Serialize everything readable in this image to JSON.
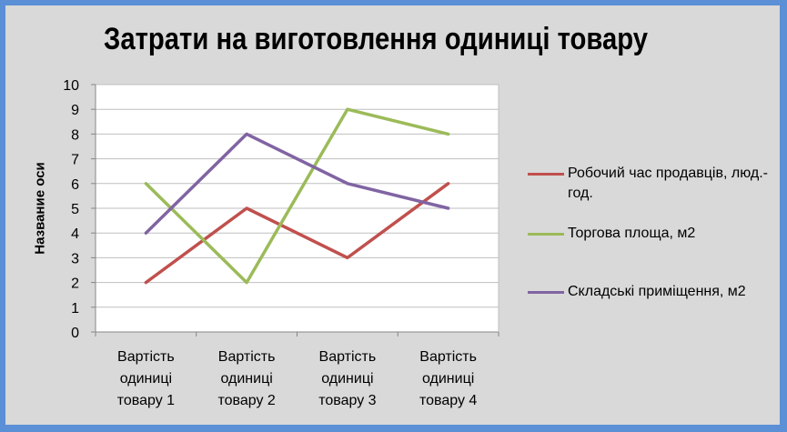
{
  "chart_data": {
    "type": "line",
    "title": "Затрати на виготовлення одиниці товару",
    "xlabel": "",
    "ylabel": "Название оси",
    "ylim": [
      0,
      10
    ],
    "yticks": [
      "0",
      "1",
      "2",
      "3",
      "4",
      "5",
      "6",
      "7",
      "8",
      "9",
      "10"
    ],
    "categories": [
      [
        "Вартість",
        "одиниці",
        "товару 1"
      ],
      [
        "Вартість",
        "одиниці",
        "товару 2"
      ],
      [
        "Вартість",
        "одиниці",
        "товару 3"
      ],
      [
        "Вартість",
        "одиниці",
        "товару 4"
      ]
    ],
    "grid": true,
    "legend_position": "right",
    "series": [
      {
        "name": "Робочий час продавців, люд.-год.",
        "values": [
          2,
          5,
          3,
          6
        ],
        "color": "#c0504d"
      },
      {
        "name": "Торгова площа, м2",
        "values": [
          6,
          2,
          9,
          8
        ],
        "color": "#9bbb59"
      },
      {
        "name": "Складські приміщення, м2",
        "values": [
          4,
          8,
          6,
          5
        ],
        "color": "#8064a2"
      }
    ]
  }
}
